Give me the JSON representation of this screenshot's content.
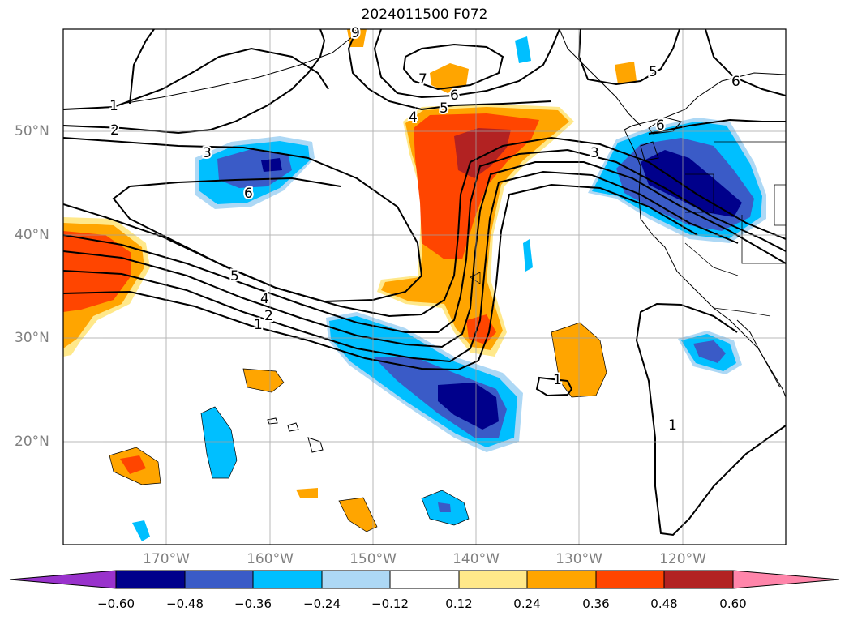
{
  "title": "2024011500 F072",
  "lat_labels": [
    "50°N",
    "40°N",
    "30°N",
    "20°N"
  ],
  "lon_labels": [
    "170°W",
    "160°W",
    "150°W",
    "140°W",
    "130°W",
    "120°W"
  ],
  "colorbar": {
    "ticks": [
      "−0.60",
      "−0.48",
      "−0.36",
      "−0.24",
      "−0.12",
      "0.12",
      "0.24",
      "0.36",
      "0.48",
      "0.60"
    ],
    "colors": [
      "#9932cc",
      "#00008b",
      "#3a5bc7",
      "#00bfff",
      "#add8f5",
      "#ffffff",
      "#ffe88a",
      "#ffa500",
      "#ff4500",
      "#b22222",
      "#ff85aa"
    ]
  },
  "contour_labels": [
    "1",
    "2",
    "3",
    "6",
    "5",
    "4",
    "2",
    "1",
    "7",
    "6",
    "5",
    "4",
    "3",
    "6",
    "5",
    "6",
    "1",
    "1",
    "9"
  ]
}
